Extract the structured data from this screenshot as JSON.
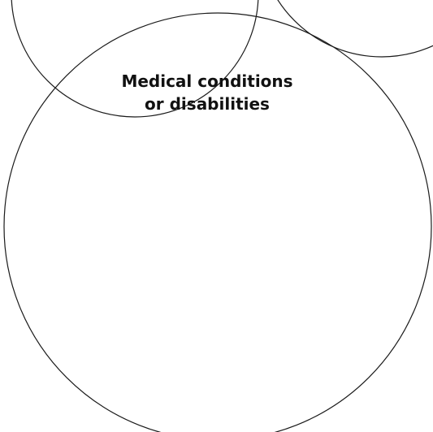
{
  "diagram": {
    "type": "venn",
    "main_circle": {
      "label_lines": [
        "Medical conditions",
        "or disabilities"
      ]
    }
  }
}
